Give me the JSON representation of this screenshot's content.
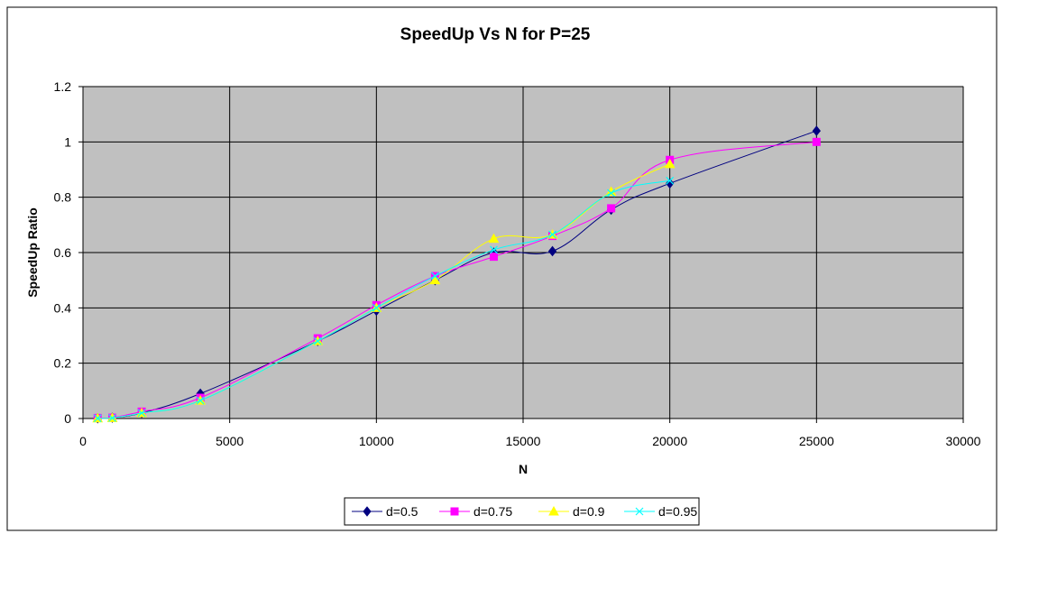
{
  "chart_data": {
    "type": "line",
    "title": "SpeedUp Vs N for P=25",
    "xlabel": "N",
    "ylabel": "SpeedUp Ratio",
    "xlim": [
      0,
      30000
    ],
    "ylim": [
      0,
      1.2
    ],
    "x_ticks": [
      "0",
      "5000",
      "10000",
      "15000",
      "20000",
      "25000",
      "30000"
    ],
    "y_ticks": [
      "0",
      "0.2",
      "0.4",
      "0.6",
      "0.8",
      "1",
      "1.2"
    ],
    "grid": true,
    "plot_background": "#C0C0C0",
    "legend_position": "bottom",
    "series": [
      {
        "name": "d=0.5",
        "color": "#000080",
        "marker": "diamond",
        "points": [
          [
            500,
            0.001
          ],
          [
            1000,
            0.003
          ],
          [
            2000,
            0.02
          ],
          [
            4000,
            0.09
          ],
          [
            8000,
            0.28
          ],
          [
            10000,
            0.39
          ],
          [
            12000,
            0.5
          ],
          [
            14000,
            0.6
          ],
          [
            16000,
            0.605
          ],
          [
            18000,
            0.755
          ],
          [
            20000,
            0.85
          ],
          [
            25000,
            1.04
          ]
        ]
      },
      {
        "name": "d=0.75",
        "color": "#FF00FF",
        "marker": "square",
        "points": [
          [
            500,
            0.002
          ],
          [
            1000,
            0.003
          ],
          [
            2000,
            0.025
          ],
          [
            4000,
            0.075
          ],
          [
            8000,
            0.29
          ],
          [
            10000,
            0.41
          ],
          [
            12000,
            0.515
          ],
          [
            14000,
            0.585
          ],
          [
            16000,
            0.66
          ],
          [
            18000,
            0.76
          ],
          [
            20000,
            0.935
          ],
          [
            25000,
            1.0
          ]
        ]
      },
      {
        "name": "d=0.9",
        "color": "#FFFF00",
        "marker": "triangle",
        "points": [
          [
            500,
            0.001
          ],
          [
            1000,
            0.002
          ],
          [
            2000,
            0.02
          ],
          [
            4000,
            0.065
          ],
          [
            8000,
            0.28
          ],
          [
            10000,
            0.4
          ],
          [
            12000,
            0.5
          ],
          [
            14000,
            0.65
          ],
          [
            16000,
            0.665
          ],
          [
            18000,
            0.82
          ],
          [
            20000,
            0.92
          ]
        ]
      },
      {
        "name": "d=0.95",
        "color": "#00FFFF",
        "marker": "x",
        "points": [
          [
            500,
            0.001
          ],
          [
            1000,
            0.002
          ],
          [
            2000,
            0.02
          ],
          [
            4000,
            0.065
          ],
          [
            8000,
            0.28
          ],
          [
            10000,
            0.4
          ],
          [
            12000,
            0.515
          ],
          [
            14000,
            0.61
          ],
          [
            16000,
            0.665
          ],
          [
            18000,
            0.815
          ],
          [
            20000,
            0.86
          ]
        ]
      }
    ]
  }
}
